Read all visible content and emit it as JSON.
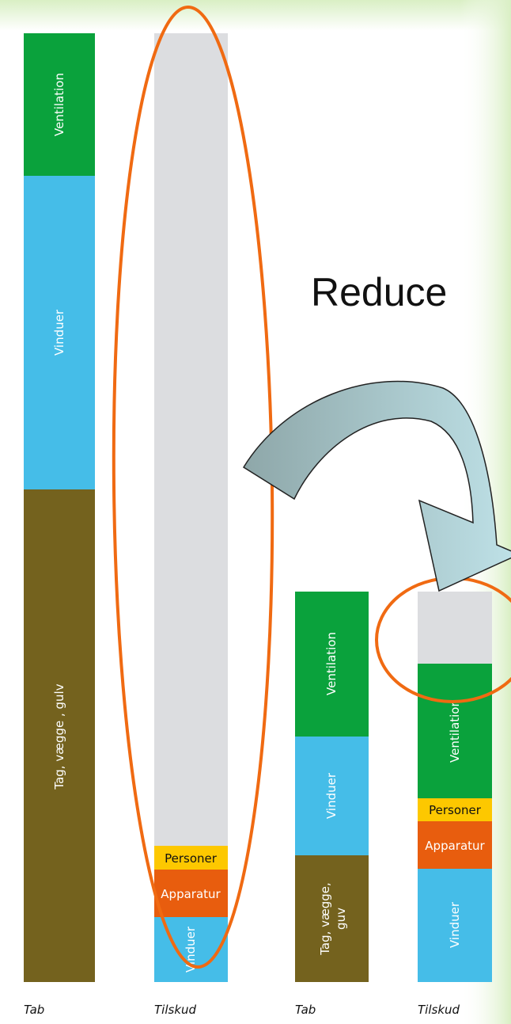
{
  "title": "Reduce",
  "bars": [
    {
      "label": "Tab",
      "segments": [
        "Ventilation",
        "Vinduer",
        "Tag, vægge , gulv"
      ]
    },
    {
      "label": "Tilskud",
      "segments": [
        "Personer",
        "Apparatur",
        "Vinduer"
      ]
    },
    {
      "label": "Tab",
      "segments": [
        "Ventilation",
        "Vinduer",
        [
          "Tag, vægge,",
          "guv"
        ]
      ]
    },
    {
      "label": "Tilskud",
      "segments": [
        "Ventilation",
        "Personer",
        "Apparatur",
        "Vinduer"
      ]
    }
  ]
}
